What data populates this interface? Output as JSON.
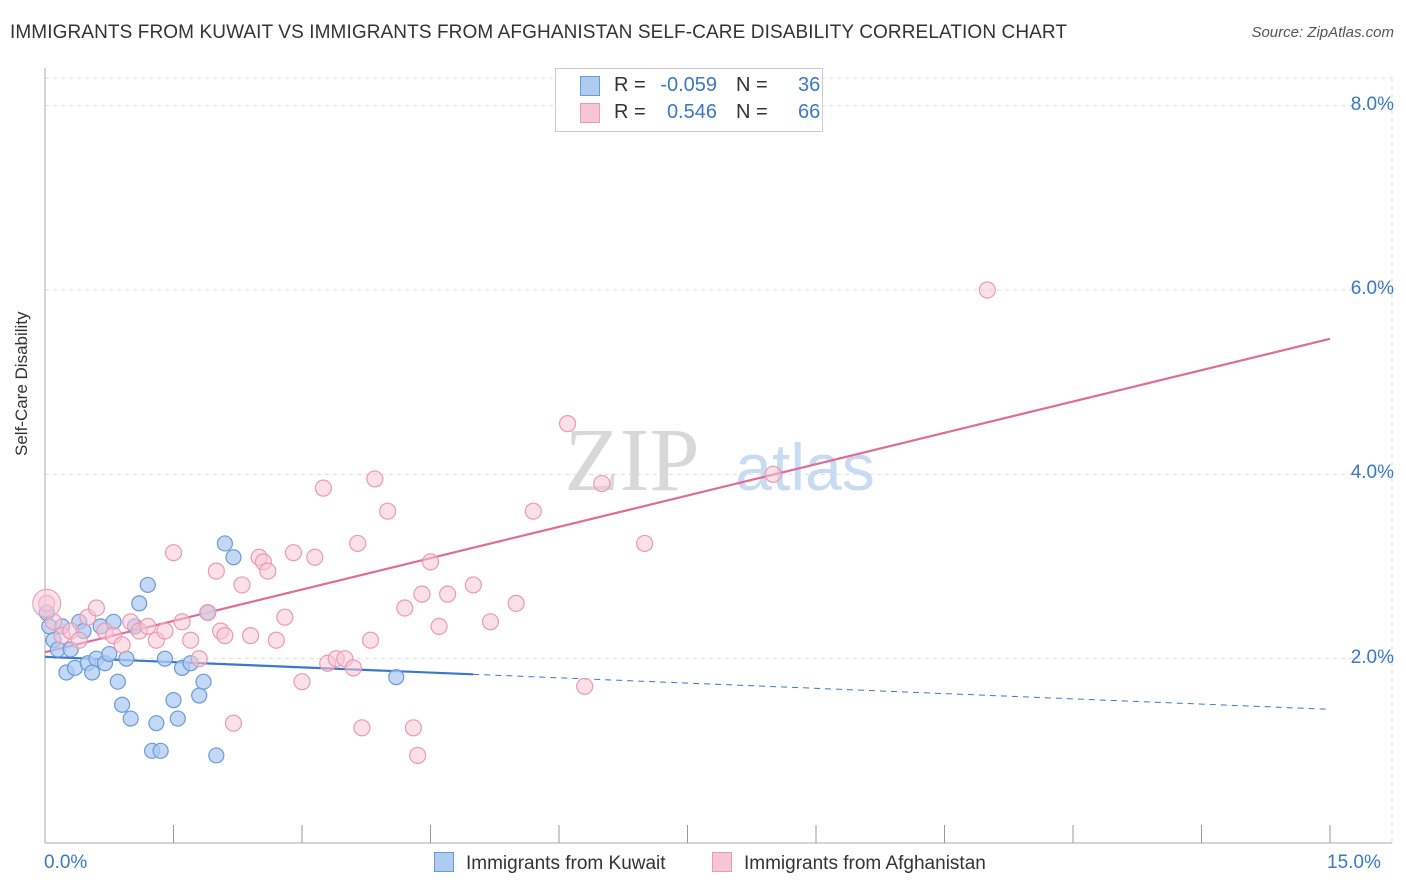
{
  "title": "IMMIGRANTS FROM KUWAIT VS IMMIGRANTS FROM AFGHANISTAN SELF-CARE DISABILITY CORRELATION CHART",
  "source": "Source: ZipAtlas.com",
  "watermark": {
    "zip": "ZIP",
    "atlas": "atlas"
  },
  "colors": {
    "kuwait_fill": "#aecbf0",
    "kuwait_stroke": "#6a9ad6",
    "kuwait_line": "#3a78c8",
    "afghan_fill": "#f7c6d5",
    "afghan_stroke": "#e99ab4",
    "afghan_line": "#e06b94",
    "tick_text": "#3a78c8",
    "grid": "#dddddd"
  },
  "legend": {
    "kuwait": {
      "r_label": "R =",
      "r_value": "-0.059",
      "n_label": "N =",
      "n_value": "36"
    },
    "afghan": {
      "r_label": "R =",
      "r_value": "0.546",
      "n_label": "N =",
      "n_value": "66"
    }
  },
  "chart_data": {
    "type": "scatter",
    "title": "IMMIGRANTS FROM KUWAIT VS IMMIGRANTS FROM AFGHANISTAN SELF-CARE DISABILITY CORRELATION CHART",
    "xlabel": "",
    "ylabel": "Self-Care Disability",
    "xlim": [
      0,
      15
    ],
    "ylim": [
      0,
      8.3
    ],
    "x_tick_labels": [
      "0.0%",
      "15.0%"
    ],
    "y_ticks": [
      2,
      4,
      6,
      8
    ],
    "y_tick_labels": [
      "2.0%",
      "4.0%",
      "6.0%",
      "8.0%"
    ],
    "grid": true,
    "series": [
      {
        "name": "Immigrants from Kuwait",
        "points": [
          [
            0.02,
            2.5
          ],
          [
            0.05,
            2.35
          ],
          [
            0.1,
            2.2
          ],
          [
            0.15,
            2.1
          ],
          [
            0.2,
            2.35
          ],
          [
            0.25,
            1.85
          ],
          [
            0.3,
            2.1
          ],
          [
            0.35,
            1.9
          ],
          [
            0.4,
            2.4
          ],
          [
            0.45,
            2.3
          ],
          [
            0.5,
            1.95
          ],
          [
            0.55,
            1.85
          ],
          [
            0.6,
            2.0
          ],
          [
            0.65,
            2.35
          ],
          [
            0.7,
            1.95
          ],
          [
            0.75,
            2.05
          ],
          [
            0.8,
            2.4
          ],
          [
            0.85,
            1.75
          ],
          [
            0.9,
            1.5
          ],
          [
            0.95,
            2.0
          ],
          [
            1.0,
            1.35
          ],
          [
            1.05,
            2.35
          ],
          [
            1.1,
            2.6
          ],
          [
            1.2,
            2.8
          ],
          [
            1.25,
            1.0
          ],
          [
            1.3,
            1.3
          ],
          [
            1.35,
            1.0
          ],
          [
            1.4,
            2.0
          ],
          [
            1.5,
            1.55
          ],
          [
            1.55,
            1.35
          ],
          [
            1.6,
            1.9
          ],
          [
            1.7,
            1.95
          ],
          [
            1.8,
            1.6
          ],
          [
            1.9,
            2.5
          ],
          [
            1.85,
            1.75
          ],
          [
            2.0,
            0.95
          ],
          [
            2.1,
            3.25
          ],
          [
            2.2,
            3.1
          ],
          [
            4.1,
            1.8
          ]
        ],
        "trend": {
          "x0": 0,
          "y0": 2.02,
          "x1_solid": 5.0,
          "y1_solid": 1.83,
          "x1": 15,
          "y1": 1.45
        }
      },
      {
        "name": "Immigrants from Afghanistan",
        "points": [
          [
            0.02,
            2.6
          ],
          [
            0.1,
            2.4
          ],
          [
            0.2,
            2.25
          ],
          [
            0.3,
            2.3
          ],
          [
            0.4,
            2.2
          ],
          [
            0.5,
            2.45
          ],
          [
            0.6,
            2.55
          ],
          [
            0.7,
            2.3
          ],
          [
            0.8,
            2.25
          ],
          [
            0.9,
            2.15
          ],
          [
            1.0,
            2.4
          ],
          [
            1.1,
            2.3
          ],
          [
            1.2,
            2.35
          ],
          [
            1.3,
            2.2
          ],
          [
            1.4,
            2.3
          ],
          [
            1.5,
            3.15
          ],
          [
            1.6,
            2.4
          ],
          [
            1.7,
            2.2
          ],
          [
            1.8,
            2.0
          ],
          [
            1.9,
            2.5
          ],
          [
            2.0,
            2.95
          ],
          [
            2.05,
            2.3
          ],
          [
            2.1,
            2.25
          ],
          [
            2.2,
            1.3
          ],
          [
            2.3,
            2.8
          ],
          [
            2.4,
            2.25
          ],
          [
            2.5,
            3.1
          ],
          [
            2.55,
            3.05
          ],
          [
            2.6,
            2.95
          ],
          [
            2.7,
            2.2
          ],
          [
            2.8,
            2.45
          ],
          [
            2.9,
            3.15
          ],
          [
            3.0,
            1.75
          ],
          [
            3.15,
            3.1
          ],
          [
            3.25,
            3.85
          ],
          [
            3.3,
            1.95
          ],
          [
            3.4,
            2.0
          ],
          [
            3.5,
            2.0
          ],
          [
            3.6,
            1.9
          ],
          [
            3.65,
            3.25
          ],
          [
            3.7,
            1.25
          ],
          [
            3.8,
            2.2
          ],
          [
            3.85,
            3.95
          ],
          [
            4.0,
            3.6
          ],
          [
            4.2,
            2.55
          ],
          [
            4.3,
            1.25
          ],
          [
            4.35,
            0.95
          ],
          [
            4.4,
            2.7
          ],
          [
            4.5,
            3.05
          ],
          [
            4.6,
            2.35
          ],
          [
            4.7,
            2.7
          ],
          [
            5.0,
            2.8
          ],
          [
            5.2,
            2.4
          ],
          [
            5.5,
            2.6
          ],
          [
            5.7,
            3.6
          ],
          [
            6.1,
            4.55
          ],
          [
            6.3,
            1.7
          ],
          [
            6.5,
            3.9
          ],
          [
            7.0,
            3.25
          ],
          [
            8.5,
            4.0
          ],
          [
            11.0,
            6.0
          ]
        ],
        "trend": {
          "x0": 0,
          "y0": 2.07,
          "x1": 15,
          "y1": 5.47
        }
      }
    ]
  },
  "bottom_legend": {
    "kuwait_label": "Immigrants from Kuwait",
    "afghan_label": "Immigrants from Afghanistan"
  }
}
